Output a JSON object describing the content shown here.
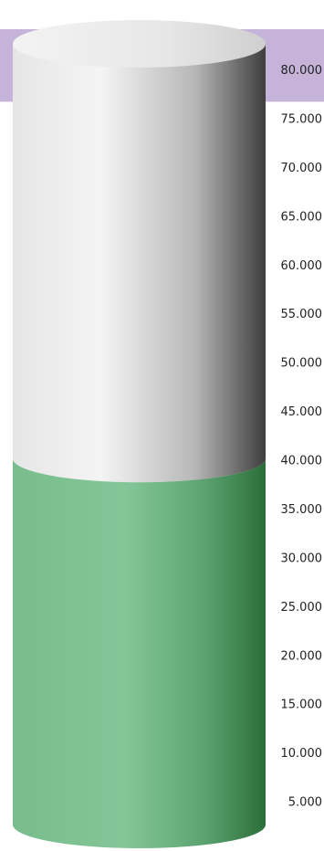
{
  "chart_data": {
    "type": "cylinder-gauge",
    "value": 37500,
    "min": 0,
    "max": 80000,
    "target_band": [
      75000,
      80000
    ],
    "ticks": [
      5000,
      10000,
      15000,
      20000,
      25000,
      30000,
      35000,
      40000,
      45000,
      50000,
      55000,
      60000,
      65000,
      70000,
      75000,
      80000
    ],
    "tick_labels": [
      "5.000",
      "10.000",
      "15.000",
      "20.000",
      "25.000",
      "30.000",
      "35.000",
      "40.000",
      "45.000",
      "50.000",
      "55.000",
      "60.000",
      "65.000",
      "70.000",
      "75.000",
      "80.000"
    ],
    "colors": {
      "fill": "#7fc393",
      "fill_dark": "#2b6e3a",
      "empty": "#f2f2f2",
      "empty_dark": "#3e3e3e",
      "band": "#c5b3d9"
    }
  }
}
